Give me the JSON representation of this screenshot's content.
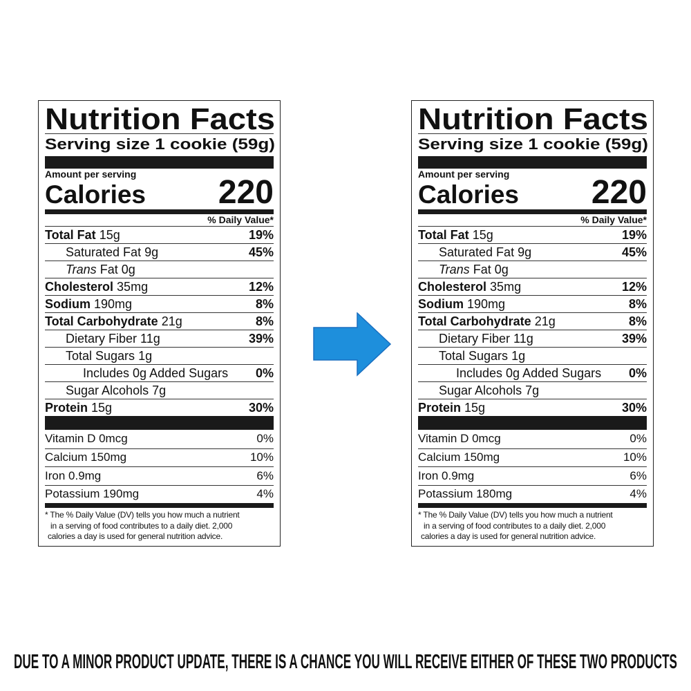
{
  "labels": [
    {
      "title": "Nutrition Facts",
      "serving": "Serving size 1 cookie (59g)",
      "amount_per_serving": "Amount per serving",
      "calories_label": "Calories",
      "calories": "220",
      "dv_header": "% Daily Value*",
      "nutrients": [
        {
          "name": "Total Fat",
          "amount": "15g",
          "dv": "19%",
          "bold": true,
          "indent": 0
        },
        {
          "name": "Saturated Fat",
          "amount": "9g",
          "dv": "45%",
          "bold": false,
          "indent": 1
        },
        {
          "name_italic": "Trans",
          "name": "Fat",
          "amount": "0g",
          "dv": "",
          "bold": false,
          "indent": 1
        },
        {
          "name": "Cholesterol",
          "amount": "35mg",
          "dv": "12%",
          "bold": true,
          "indent": 0
        },
        {
          "name": "Sodium",
          "amount": "190mg",
          "dv": "8%",
          "bold": true,
          "indent": 0
        },
        {
          "name": "Total Carbohydrate",
          "amount": "21g",
          "dv": "8%",
          "bold": true,
          "indent": 0
        },
        {
          "name": "Dietary Fiber",
          "amount": "11g",
          "dv": "39%",
          "bold": false,
          "indent": 1
        },
        {
          "name": "Total Sugars",
          "amount": "1g",
          "dv": "",
          "bold": false,
          "indent": 1
        },
        {
          "name": "Includes 0g Added Sugars",
          "amount": "",
          "dv": "0%",
          "bold": false,
          "indent": 2
        },
        {
          "name": "Sugar Alcohols",
          "amount": "7g",
          "dv": "",
          "bold": false,
          "indent": 1
        },
        {
          "name": "Protein",
          "amount": "15g",
          "dv": "30%",
          "bold": true,
          "indent": 0
        }
      ],
      "vitamins": [
        {
          "text": "Vitamin D 0mcg",
          "dv": "0%"
        },
        {
          "text": "Calcium 150mg",
          "dv": "10%"
        },
        {
          "text": "Iron 0.9mg",
          "dv": "6%"
        },
        {
          "text": "Potassium 190mg",
          "dv": "4%"
        }
      ],
      "footnote": [
        "* The % Daily Value (DV) tells you how much a nutrient",
        "in a serving of food contributes to a daily diet. 2,000",
        "calories a day is used for general nutrition advice."
      ]
    },
    {
      "title": "Nutrition Facts",
      "serving": "Serving size 1 cookie (59g)",
      "amount_per_serving": "Amount per serving",
      "calories_label": "Calories",
      "calories": "220",
      "dv_header": "% Daily Value*",
      "nutrients": [
        {
          "name": "Total Fat",
          "amount": "15g",
          "dv": "19%",
          "bold": true,
          "indent": 0
        },
        {
          "name": "Saturated Fat",
          "amount": "9g",
          "dv": "45%",
          "bold": false,
          "indent": 1
        },
        {
          "name_italic": "Trans",
          "name": "Fat",
          "amount": "0g",
          "dv": "",
          "bold": false,
          "indent": 1
        },
        {
          "name": "Cholesterol",
          "amount": "35mg",
          "dv": "12%",
          "bold": true,
          "indent": 0
        },
        {
          "name": "Sodium",
          "amount": "190mg",
          "dv": "8%",
          "bold": true,
          "indent": 0
        },
        {
          "name": "Total Carbohydrate",
          "amount": "21g",
          "dv": "8%",
          "bold": true,
          "indent": 0
        },
        {
          "name": "Dietary Fiber",
          "amount": "11g",
          "dv": "39%",
          "bold": false,
          "indent": 1
        },
        {
          "name": "Total Sugars",
          "amount": "1g",
          "dv": "",
          "bold": false,
          "indent": 1
        },
        {
          "name": "Includes 0g Added Sugars",
          "amount": "",
          "dv": "0%",
          "bold": false,
          "indent": 2
        },
        {
          "name": "Sugar Alcohols",
          "amount": "7g",
          "dv": "",
          "bold": false,
          "indent": 1
        },
        {
          "name": "Protein",
          "amount": "15g",
          "dv": "30%",
          "bold": true,
          "indent": 0
        }
      ],
      "vitamins": [
        {
          "text": "Vitamin D 0mcg",
          "dv": "0%"
        },
        {
          "text": "Calcium 150mg",
          "dv": "10%"
        },
        {
          "text": "Iron 0.9mg",
          "dv": "6%"
        },
        {
          "text": "Potassium 180mg",
          "dv": "4%"
        }
      ],
      "footnote": [
        "* The % Daily Value (DV) tells you how much a nutrient",
        "in a serving of food contributes to a daily diet. 2,000",
        "calories a day is used for general nutrition advice."
      ]
    }
  ],
  "arrow": {
    "icon": "arrow-right-icon",
    "color": "#1e8fdc",
    "stroke": "#1a6fc0"
  },
  "banner": "DUE TO A MINOR PRODUCT UPDATE, THERE IS A CHANCE YOU WILL RECEIVE EITHER OF THESE TWO PRODUCTS"
}
